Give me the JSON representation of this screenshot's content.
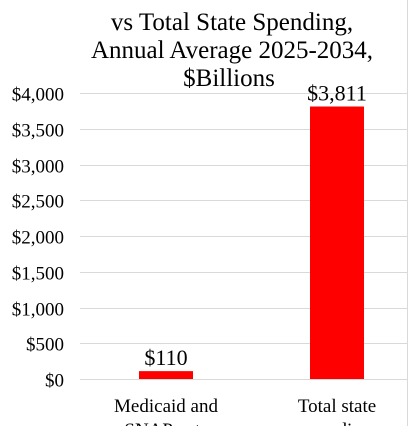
{
  "chart_data": {
    "type": "bar",
    "title_lines": [
      "vs Total State Spending,",
      "Annual Average 2025-2034,",
      "$Billions"
    ],
    "categories": [
      "Medicaid and SNAP cuts",
      "Total state spending"
    ],
    "category_label_lines": [
      [
        "Medicaid and",
        "SNAP cuts"
      ],
      [
        "Total state",
        "spending"
      ]
    ],
    "values": [
      110,
      3811
    ],
    "data_labels": [
      "$110",
      "$3,811"
    ],
    "bar_color": "#ff0000",
    "ylim": [
      0,
      4000
    ],
    "yticks": [
      0,
      500,
      1000,
      1500,
      2000,
      2500,
      3000,
      3500,
      4000
    ],
    "ytick_labels": [
      "$0",
      "$500",
      "$1,000",
      "$1,500",
      "$2,000",
      "$2,500",
      "$3,000",
      "$3,500",
      "$4,000"
    ],
    "grid": true,
    "legend": "none"
  }
}
